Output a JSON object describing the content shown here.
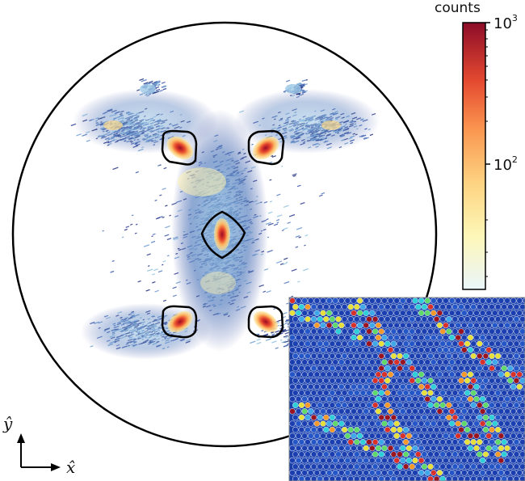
{
  "colorbar": {
    "title": "counts",
    "scale": "log",
    "ticks": [
      {
        "label_base": "10",
        "label_exp": "3",
        "value": 1000
      },
      {
        "label_base": "10",
        "label_exp": "2",
        "value": 100
      }
    ],
    "colors": [
      "#f6fbfc",
      "#fdf6b8",
      "#fdd07a",
      "#fb9a4c",
      "#ee5a32",
      "#c8182c",
      "#8e0c28"
    ]
  },
  "axes": {
    "y_label": "ŷ",
    "x_label": "x̂"
  },
  "chart_data": {
    "type": "heatmap",
    "title": "",
    "colorbar_label": "counts",
    "colorbar_scale": "log",
    "colorbar_ticks": [
      100,
      1000
    ],
    "highlighted_peaks": 5,
    "inset": "particle configuration snapshot"
  }
}
